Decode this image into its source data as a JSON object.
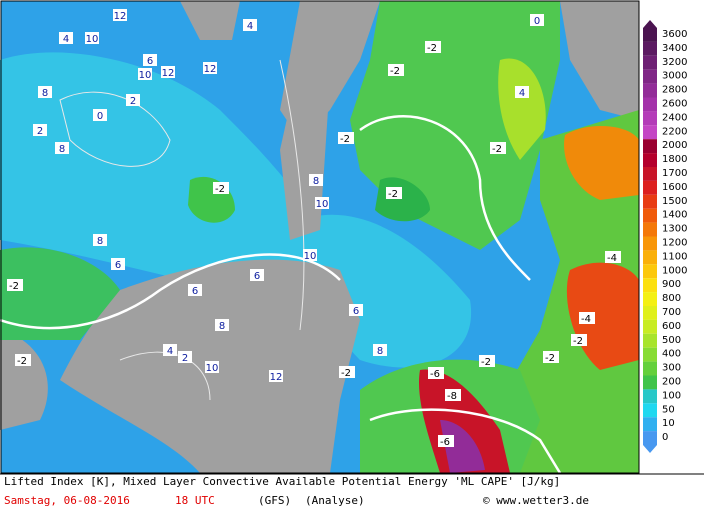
{
  "footer": {
    "title": "Lifted Index [K], Mixed Layer Convective Available Potential Energy 'ML CAPE' [J/kg]",
    "date": "Samstag, 06-08-2016",
    "time": "18 UTC",
    "model": "(GFS)",
    "run": "(Analyse)",
    "credit": "© www.wetter3.de"
  },
  "legend": [
    {
      "label": "3600",
      "color": "#4b1450"
    },
    {
      "label": "3400",
      "color": "#5c1a62"
    },
    {
      "label": "3200",
      "color": "#6e2074"
    },
    {
      "label": "3000",
      "color": "#802686"
    },
    {
      "label": "2800",
      "color": "#922c98"
    },
    {
      "label": "2600",
      "color": "#a432aa"
    },
    {
      "label": "2400",
      "color": "#b43cb8"
    },
    {
      "label": "2200",
      "color": "#c446c4"
    },
    {
      "label": "2000",
      "color": "#9a0030"
    },
    {
      "label": "1800",
      "color": "#b4002c"
    },
    {
      "label": "1700",
      "color": "#c81428"
    },
    {
      "label": "1600",
      "color": "#dc2020"
    },
    {
      "label": "1500",
      "color": "#e83c14"
    },
    {
      "label": "1400",
      "color": "#f05a0a"
    },
    {
      "label": "1300",
      "color": "#f47808"
    },
    {
      "label": "1200",
      "color": "#f89608"
    },
    {
      "label": "1100",
      "color": "#fab00a"
    },
    {
      "label": "1000",
      "color": "#fcc80c"
    },
    {
      "label": "900",
      "color": "#fce010"
    },
    {
      "label": "800",
      "color": "#f4f014"
    },
    {
      "label": "700",
      "color": "#e0f01c"
    },
    {
      "label": "600",
      "color": "#c8ec24"
    },
    {
      "label": "500",
      "color": "#a8e42c"
    },
    {
      "label": "400",
      "color": "#88dc34"
    },
    {
      "label": "300",
      "color": "#64d03c"
    },
    {
      "label": "200",
      "color": "#40c44a"
    },
    {
      "label": "100",
      "color": "#28c8c8"
    },
    {
      "label": "50",
      "color": "#20d8f0"
    },
    {
      "label": "10",
      "color": "#30b0f0"
    },
    {
      "label": "0",
      "color": "#4898f0"
    }
  ],
  "contour_labels": [
    "12",
    "10",
    "6",
    "4",
    "12",
    "10",
    "8",
    "12",
    "2",
    "0",
    "8",
    "-2",
    "-2",
    "4",
    "0",
    "-2",
    "-2",
    "-2",
    "-2",
    "6",
    "8",
    "10",
    "12",
    "2",
    "4",
    "-2",
    "-2",
    "6",
    "8",
    "10",
    "-4",
    "-4",
    "-2",
    "-2",
    "-6",
    "-8",
    "-6",
    "-2",
    "8",
    "6",
    "4",
    "2",
    "-2",
    "10",
    "8",
    "6"
  ]
}
